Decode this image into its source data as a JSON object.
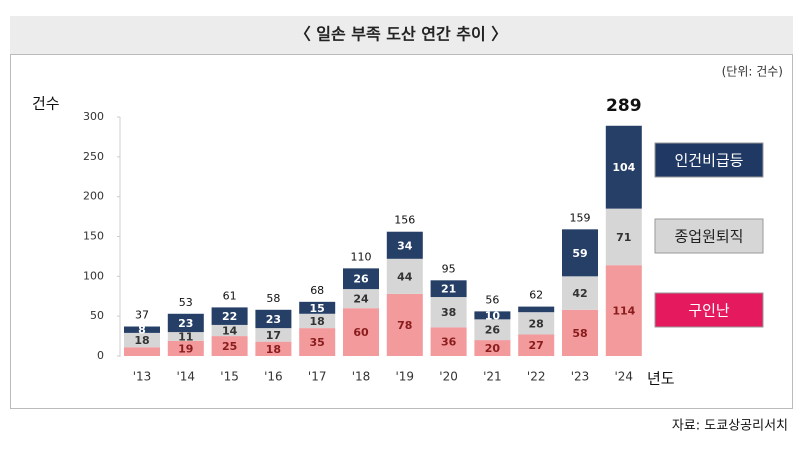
{
  "chart_data": {
    "type": "stacked-bar",
    "title": "〈 일손 부족 도산 연간 추이 〉",
    "unit": "(단위: 건수)",
    "y_label": "건수",
    "x_label": "년도",
    "source": "자료: 도쿄상공리서치",
    "categories": [
      "'13",
      "'14",
      "'15",
      "'16",
      "'17",
      "'18",
      "'19",
      "'20",
      "'21",
      "'22",
      "'23",
      "'24"
    ],
    "series": [
      {
        "name": "구인난",
        "color": "#f29a9c",
        "legend_color": "#e5195d",
        "label_color": "#8a1c1c",
        "values": [
          11,
          19,
          25,
          18,
          35,
          60,
          78,
          36,
          20,
          27,
          58,
          114
        ],
        "value_labels": [
          null,
          "19",
          "25",
          "18",
          "35",
          "60",
          "78",
          "36",
          "20",
          "27",
          "58",
          "114"
        ]
      },
      {
        "name": "종업원퇴직",
        "color": "#d6d6d6",
        "legend_color": "#d6d6d6",
        "label_color": "#333333",
        "values": [
          18,
          11,
          14,
          17,
          18,
          24,
          44,
          38,
          26,
          28,
          42,
          71
        ],
        "value_labels": [
          "18",
          "11",
          "14",
          "17",
          "18",
          "24",
          "44",
          "38",
          "26",
          "28",
          "42",
          "71"
        ]
      },
      {
        "name": "인건비급등",
        "color": "#253f66",
        "legend_color": "#1f3864",
        "label_color": "#ffffff",
        "values": [
          8,
          23,
          22,
          23,
          15,
          26,
          34,
          21,
          10,
          7,
          59,
          104
        ],
        "value_labels": [
          "8",
          "23",
          "22",
          "23",
          "15",
          "26",
          "34",
          "21",
          "10",
          null,
          "59",
          "104"
        ]
      }
    ],
    "totals": [
      37,
      53,
      61,
      58,
      68,
      110,
      156,
      95,
      56,
      62,
      159,
      289
    ],
    "ylim": [
      0,
      300
    ],
    "yticks": [
      0,
      50,
      100,
      150,
      200,
      250,
      300
    ]
  }
}
